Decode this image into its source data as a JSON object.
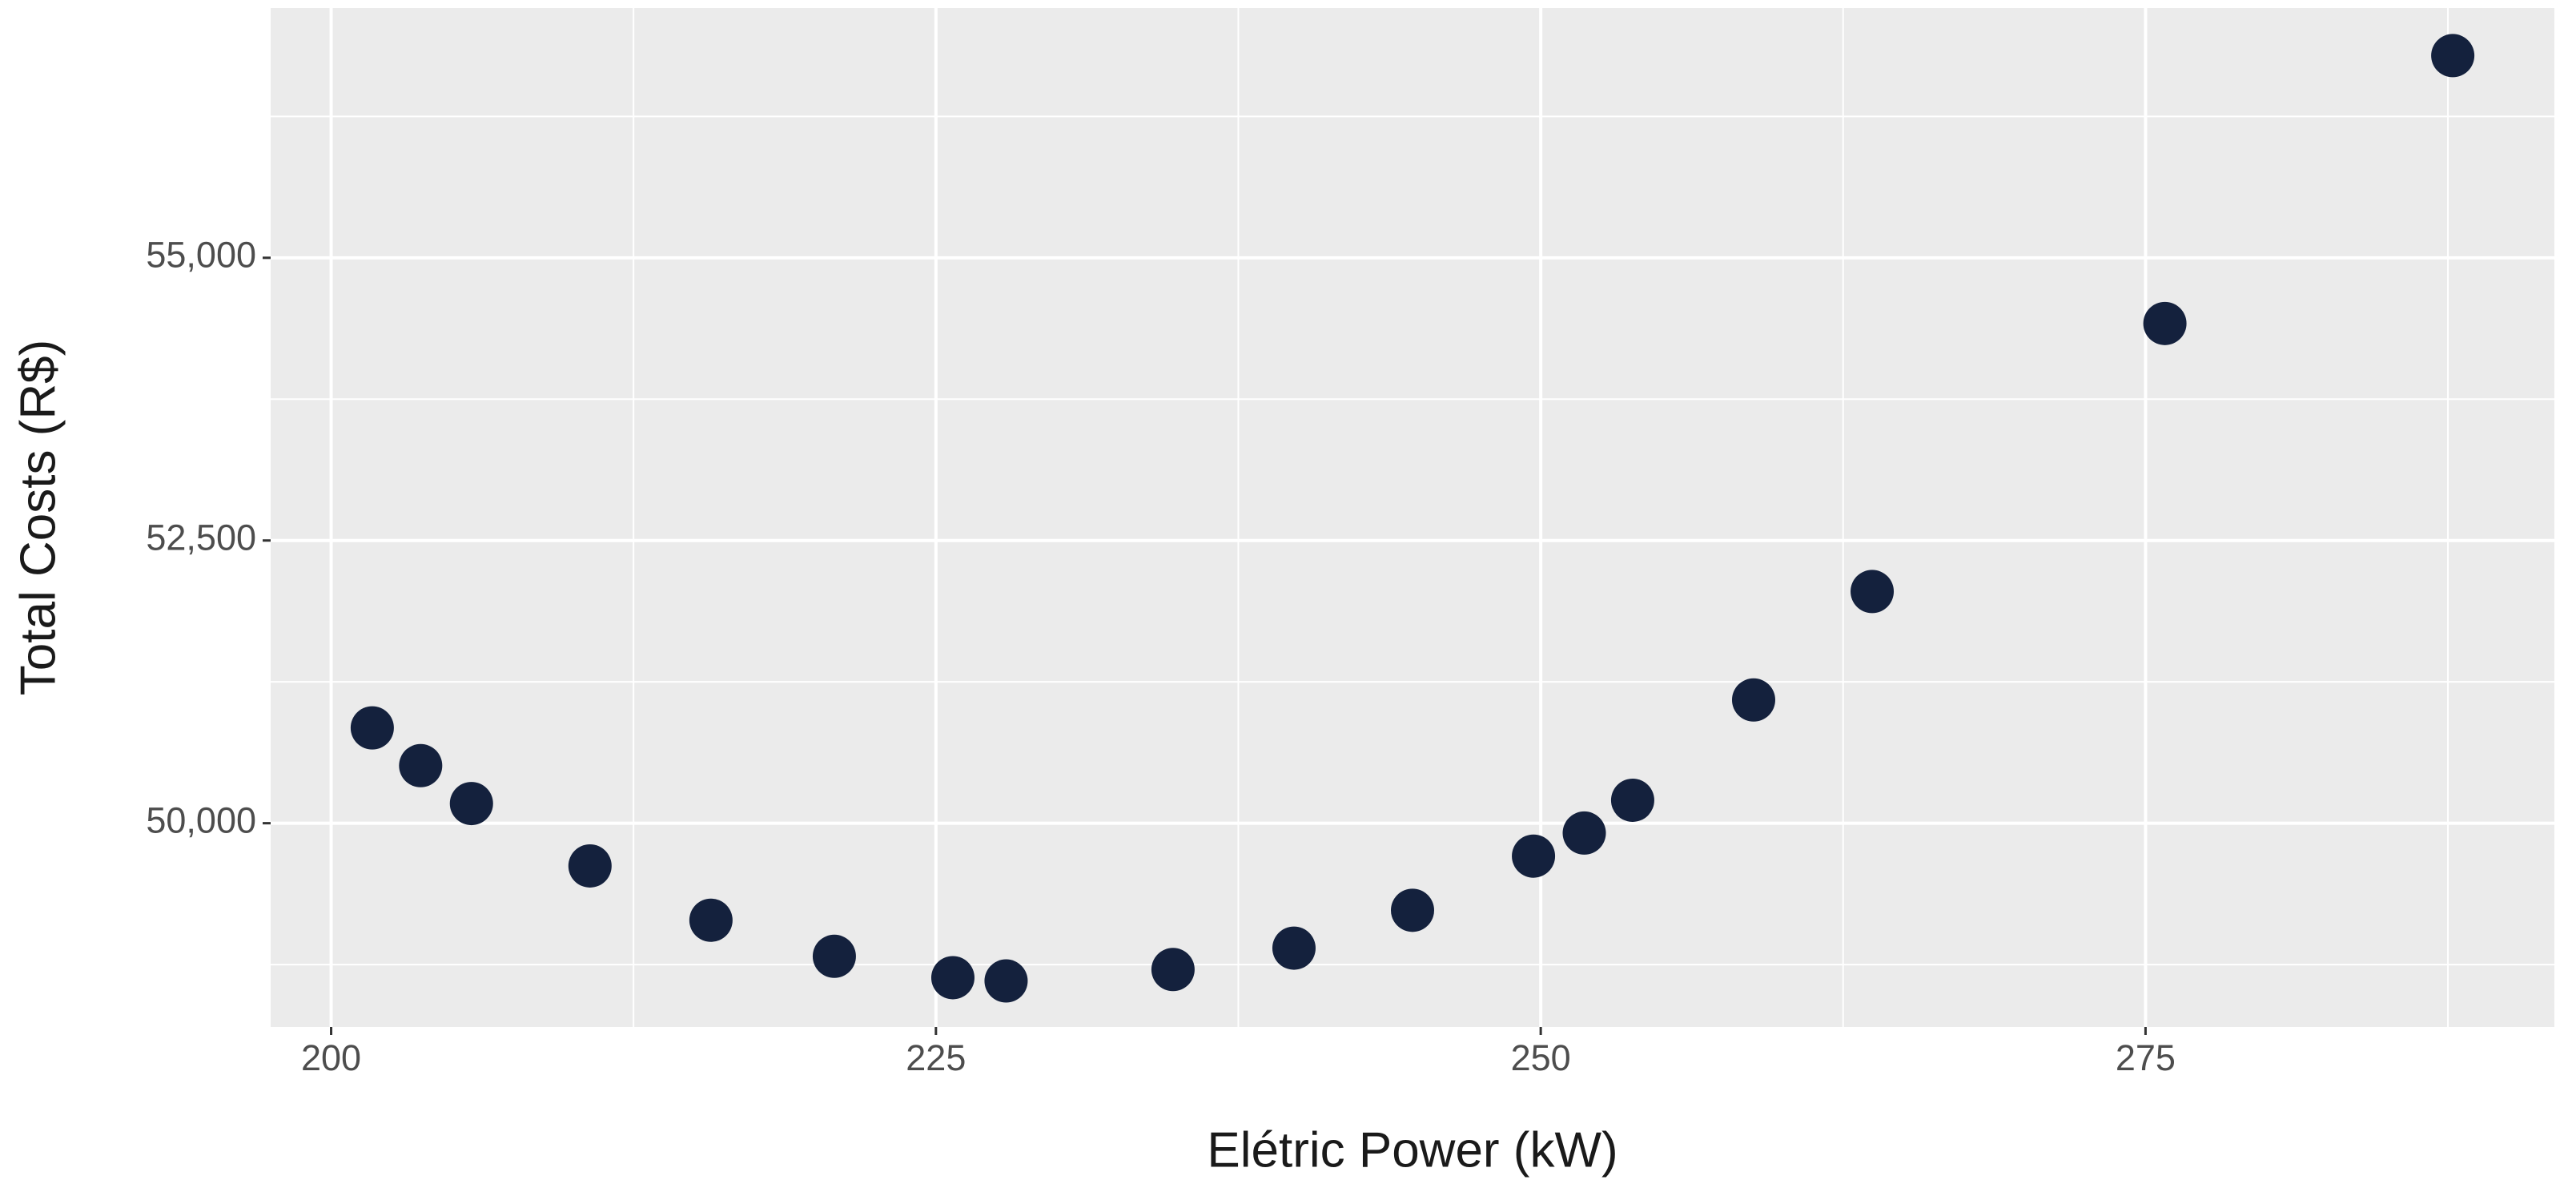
{
  "chart_data": {
    "type": "scatter",
    "x_label": "Elétric Power (kW)",
    "y_label": "Total Costs (R$)",
    "x": [
      201.7,
      203.7,
      205.8,
      210.7,
      215.7,
      220.8,
      225.7,
      227.9,
      234.8,
      239.8,
      244.7,
      249.7,
      251.8,
      253.8,
      258.8,
      263.7,
      275.8,
      287.7
    ],
    "series": [
      {
        "color": "#14213d",
        "values": [
          50843,
          50509,
          50174,
          49622,
          49142,
          48823,
          48634,
          48605,
          48706,
          48895,
          49230,
          49709,
          49913,
          50203,
          51090,
          52049,
          54419,
          56788
        ]
      }
    ],
    "xlim": [
      197.5,
      291.9
    ],
    "ylim": [
      48198,
      57209
    ],
    "xticks": [
      200,
      225,
      250,
      275
    ],
    "yticks": [
      {
        "value": 50000,
        "label": "50,000"
      },
      {
        "value": 52500,
        "label": "52,500"
      },
      {
        "value": 55000,
        "label": "55,000"
      }
    ],
    "grid": true
  }
}
